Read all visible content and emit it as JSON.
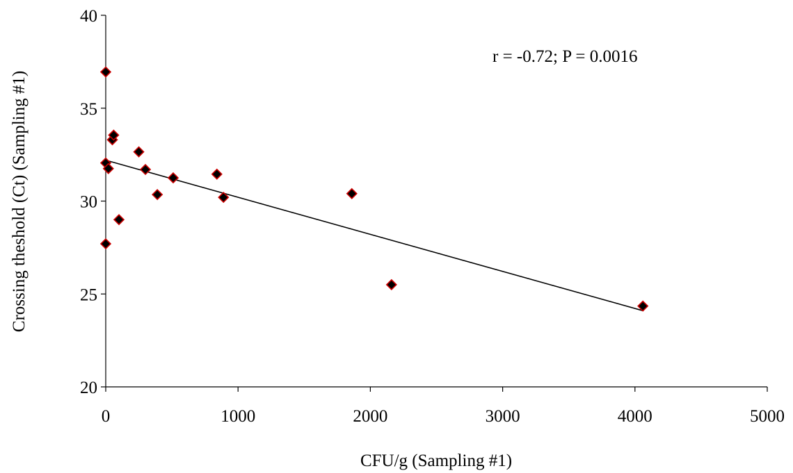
{
  "chart_data": {
    "type": "scatter",
    "title": "",
    "xlabel": "CFU/g (Sampling #1)",
    "ylabel": "Crossing theshold (Ct) (Sampling #1)",
    "xlim": [
      0,
      5000
    ],
    "ylim": [
      20,
      40
    ],
    "xticks": [
      0,
      1000,
      2000,
      3000,
      4000,
      5000
    ],
    "yticks": [
      20,
      25,
      30,
      35,
      40
    ],
    "grid": false,
    "legend": "none",
    "annotation": "r = -0.72; P = 0.0016",
    "marker": {
      "shape": "diamond",
      "fill": "#000000",
      "stroke": "#cc0000"
    },
    "points": [
      {
        "x": 0,
        "y": 36.95
      },
      {
        "x": 0,
        "y": 32.05
      },
      {
        "x": 0,
        "y": 27.7
      },
      {
        "x": 20,
        "y": 31.75
      },
      {
        "x": 50,
        "y": 33.3
      },
      {
        "x": 60,
        "y": 33.55
      },
      {
        "x": 100,
        "y": 29.0
      },
      {
        "x": 250,
        "y": 32.65
      },
      {
        "x": 300,
        "y": 31.7
      },
      {
        "x": 390,
        "y": 30.35
      },
      {
        "x": 510,
        "y": 31.25
      },
      {
        "x": 840,
        "y": 31.45
      },
      {
        "x": 890,
        "y": 30.2
      },
      {
        "x": 1860,
        "y": 30.4
      },
      {
        "x": 2160,
        "y": 25.5
      },
      {
        "x": 4060,
        "y": 24.35
      }
    ],
    "trendline": {
      "x": [
        0,
        4060
      ],
      "y": [
        32.2,
        24.1
      ],
      "color": "#000000"
    }
  }
}
